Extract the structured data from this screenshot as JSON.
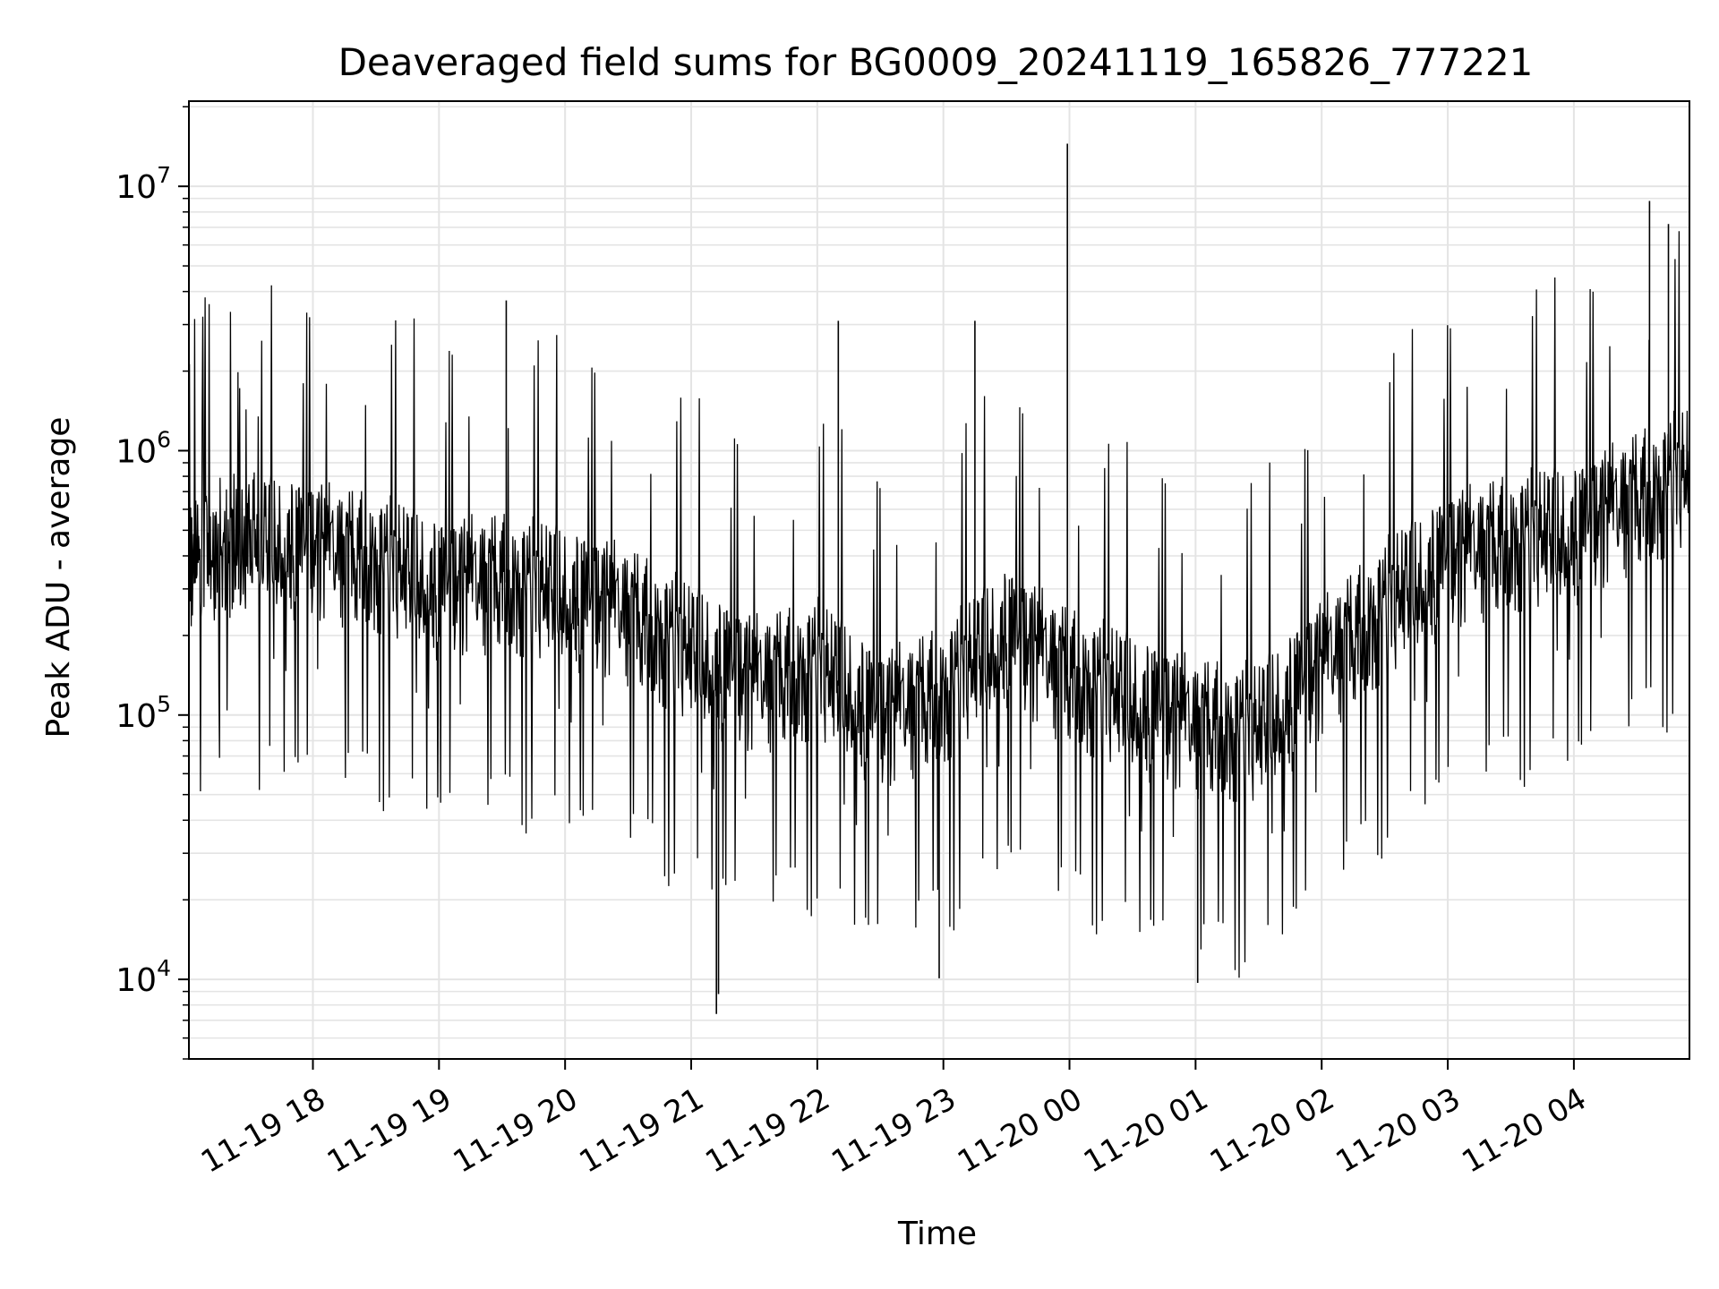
{
  "chart_data": {
    "type": "line",
    "title": "Deaveraged field sums for BG0009_20241119_165826_777221",
    "xlabel": "Time",
    "ylabel": "Peak ADU - average",
    "yscale": "log",
    "ylim": [
      5000,
      21000000
    ],
    "xlim": [
      "2024-11-19 17:01",
      "2024-11-20 04:55"
    ],
    "grid": true,
    "line_color": "#000000",
    "x_ticks": [
      "11-19 18",
      "11-19 19",
      "11-19 20",
      "11-19 21",
      "11-19 22",
      "11-19 23",
      "11-20 00",
      "11-20 01",
      "11-20 02",
      "11-20 03",
      "11-20 04"
    ],
    "y_ticks": [
      {
        "base": "10",
        "exp": "4",
        "value": 10000
      },
      {
        "base": "10",
        "exp": "5",
        "value": 100000
      },
      {
        "base": "10",
        "exp": "6",
        "value": 1000000
      },
      {
        "base": "10",
        "exp": "7",
        "value": 10000000
      }
    ],
    "series": [
      {
        "x": [
          "2024-11-19 17:01",
          "2024-11-19 17:30",
          "2024-11-19 18:00",
          "2024-11-19 18:30",
          "2024-11-19 19:00",
          "2024-11-19 19:30",
          "2024-11-19 20:00",
          "2024-11-19 20:30",
          "2024-11-19 21:00",
          "2024-11-19 21:30",
          "2024-11-19 22:00",
          "2024-11-19 22:30",
          "2024-11-19 23:00",
          "2024-11-19 23:30",
          "2024-11-20 00:00",
          "2024-11-20 00:30",
          "2024-11-20 01:00",
          "2024-11-20 01:30",
          "2024-11-20 02:00",
          "2024-11-20 02:30",
          "2024-11-20 03:00",
          "2024-11-20 03:30",
          "2024-11-20 04:00",
          "2024-11-20 04:30",
          "2024-11-20 04:55"
        ],
        "values": [
          400000,
          450000,
          420000,
          380000,
          300000,
          320000,
          280000,
          240000,
          170000,
          130000,
          150000,
          95000,
          120000,
          200000,
          140000,
          110000,
          90000,
          85000,
          150000,
          250000,
          380000,
          450000,
          480000,
          650000,
          800000
        ]
      }
    ],
    "spikes": [
      {
        "x": "2024-11-19 23:59",
        "value": 14500000
      },
      {
        "x": "2024-11-20 04:36",
        "value": 8800000
      },
      {
        "x": "2024-11-20 04:45",
        "value": 7200000
      },
      {
        "x": "2024-11-19 19:32",
        "value": 3700000
      },
      {
        "x": "2024-11-19 23:15",
        "value": 3100000
      },
      {
        "x": "2024-11-19 22:10",
        "value": 3100000
      },
      {
        "x": "2024-11-19 21:12",
        "value": 7400
      },
      {
        "x": "2024-11-19 21:13",
        "value": 8800
      },
      {
        "x": "2024-11-20 01:01",
        "value": 9700
      },
      {
        "x": "2024-11-19 22:58",
        "value": 10100
      }
    ]
  }
}
